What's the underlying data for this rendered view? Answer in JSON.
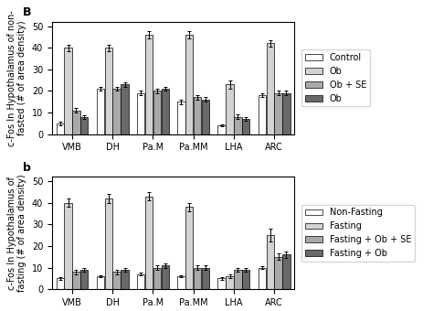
{
  "chart_data": [
    {
      "type": "bar",
      "categories": [
        "VMB",
        "DH",
        "Pa.M",
        "Pa.MM",
        "LHA",
        "ARC"
      ],
      "y_label": "c-Fos In Hypothalamus of non-\nfasted (# of area density)",
      "annotations": [
        "B"
      ],
      "ylim": [
        0,
        52
      ],
      "yticks": [
        0,
        10,
        20,
        30,
        40,
        50
      ],
      "legend": "right",
      "series": [
        {
          "name": "Control",
          "color": "#ffffff",
          "values": [
            5,
            21,
            19,
            15,
            4,
            18
          ],
          "errors": [
            0.8,
            1.0,
            1.0,
            1.0,
            0.5,
            1.0
          ]
        },
        {
          "name": "Ob",
          "color": "#d3d3d3",
          "values": [
            40,
            40,
            46,
            46,
            23,
            42
          ],
          "errors": [
            1.5,
            1.5,
            1.5,
            1.5,
            2.0,
            1.5
          ]
        },
        {
          "name": "Ob + SE",
          "color": "#a9a9a9",
          "values": [
            11,
            21,
            20,
            17,
            8,
            19
          ],
          "errors": [
            1.0,
            1.0,
            1.0,
            1.0,
            1.0,
            1.0
          ]
        },
        {
          "name": "Ob",
          "color": "#696969",
          "values": [
            8,
            23,
            21,
            16,
            7,
            19
          ],
          "errors": [
            0.8,
            1.0,
            1.0,
            1.0,
            0.8,
            1.0
          ]
        }
      ]
    },
    {
      "type": "bar",
      "categories": [
        "VMB",
        "DH",
        "Pa.M",
        "Pa.MM",
        "LHA",
        "ARC"
      ],
      "y_label": "c-Fos In Hypothalamus of\nfasting (# of area density)",
      "annotations": [
        "b"
      ],
      "ylim": [
        0,
        52
      ],
      "yticks": [
        0,
        10,
        20,
        30,
        40,
        50
      ],
      "legend": "right",
      "series": [
        {
          "name": "Non-Fasting",
          "color": "#ffffff",
          "values": [
            5,
            6,
            7,
            6,
            5,
            10
          ],
          "errors": [
            0.5,
            0.5,
            0.5,
            0.5,
            0.5,
            0.8
          ]
        },
        {
          "name": "Fasting",
          "color": "#d3d3d3",
          "values": [
            40,
            42,
            43,
            38,
            6,
            25
          ],
          "errors": [
            2.0,
            2.0,
            2.0,
            2.0,
            0.8,
            3.0
          ]
        },
        {
          "name": "Fasting + Ob + SE",
          "color": "#a9a9a9",
          "values": [
            8,
            8,
            10,
            10,
            9,
            15
          ],
          "errors": [
            1.0,
            1.0,
            1.0,
            1.0,
            0.8,
            1.5
          ]
        },
        {
          "name": "Fasting + Ob",
          "color": "#696969",
          "values": [
            9,
            9,
            11,
            10,
            9,
            16
          ],
          "errors": [
            0.8,
            0.8,
            1.0,
            1.0,
            0.8,
            1.5
          ]
        }
      ]
    }
  ]
}
